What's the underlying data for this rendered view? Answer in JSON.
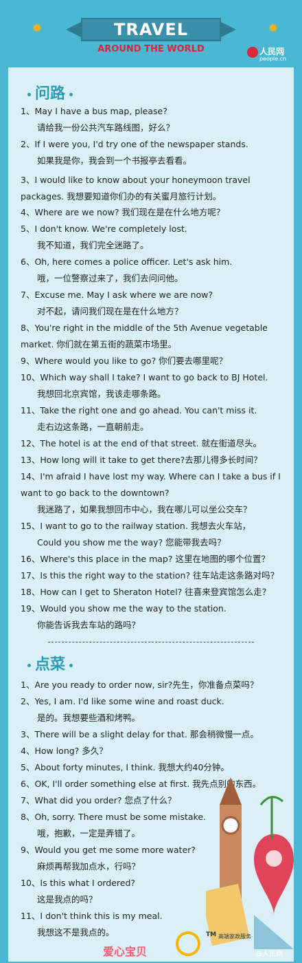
{
  "header": {
    "title": "TRAVEL",
    "subtitle": "AROUND THE WORLD",
    "logo_text": "人民网",
    "logo_sub": "people.cn"
  },
  "sections": [
    {
      "heading": "问路",
      "lines": [
        {
          "t": "1、May I have a bus map, please?",
          "k": "en"
        },
        {
          "t": "请给我一份公共汽车路线图，好么？",
          "k": "cn"
        },
        {
          "t": "2、If I were you, I'd try one of the newspaper stands.",
          "k": "en"
        },
        {
          "t": "如果我是你，我会到一个书报亭去看看。",
          "k": "cn"
        },
        {
          "t": "3、I would like to know about your honeymoon travel",
          "k": "en"
        },
        {
          "t": "packages. 我想要知道你们办的有关蜜月旅行计划。",
          "k": "wrap"
        },
        {
          "t": "4、Where are we now? 我们现在是在什么地方呢？",
          "k": "en"
        },
        {
          "t": "5、I don't know. We're completely lost.",
          "k": "en"
        },
        {
          "t": "我不知道，我们完全迷路了。",
          "k": "cn"
        },
        {
          "t": "6、Oh, here comes a police officer. Let's ask him.",
          "k": "en"
        },
        {
          "t": "哦，一位警察过来了，我们去问问他。",
          "k": "cn"
        },
        {
          "t": "7、Excuse me. May I ask where we are now?",
          "k": "en"
        },
        {
          "t": "对不起，请问我们现在是在什么地方？",
          "k": "cn"
        },
        {
          "t": "8、You're right in the middle of the 5th Avenue vegetable",
          "k": "en"
        },
        {
          "t": "market. 你们就在第五街的蔬菜市场里。",
          "k": "wrap"
        },
        {
          "t": "9、Where would you like to go? 你们要去哪里呢？",
          "k": "en"
        },
        {
          "t": "10、Which way shall I take? I want to go back to BJ Hotel.",
          "k": "en"
        },
        {
          "t": "我想回北京宾馆，我该走哪条路。",
          "k": "cn"
        },
        {
          "t": "11、Take the right one and go ahead. You can't miss it.",
          "k": "en"
        },
        {
          "t": "走右边这条路，一直朝前走。",
          "k": "cn"
        },
        {
          "t": "12、The hotel is at the end of that street. 就在街道尽头。",
          "k": "en"
        },
        {
          "t": "13、How long will it take to get there?去那儿得多长时间？",
          "k": "en"
        },
        {
          "t": "14、I'm afraid I have lost my way. Where can I take a bus if I",
          "k": "en"
        },
        {
          "t": "want to go back to the downtown?",
          "k": "wrap"
        },
        {
          "t": "我迷路了，如果我想回市中心，我在哪儿可以坐公交车？",
          "k": "cn"
        },
        {
          "t": "15、I want to go to the railway station. 我想去火车站，",
          "k": "en"
        },
        {
          "t": "Could you show me the way? 您能带我去吗？",
          "k": "cn"
        },
        {
          "t": "16、Where's this place in the map? 这里在地图的哪个位置？",
          "k": "en"
        },
        {
          "t": "17、Is this the right way to the station? 往车站走这条路对吗？",
          "k": "en"
        },
        {
          "t": "18、How can I get to Sheraton Hotel? 往喜来登宾馆怎么走？",
          "k": "en"
        },
        {
          "t": "19、Would you show me the way to the station.",
          "k": "en"
        },
        {
          "t": "你能告诉我去车站的路吗？",
          "k": "cn"
        }
      ]
    },
    {
      "heading": "点菜",
      "lines": [
        {
          "t": "1、Are you ready to order now, sir?先生，你准备点菜吗？",
          "k": "en"
        },
        {
          "t": "2、Yes, I am. I'd like some wine and roast duck.",
          "k": "en"
        },
        {
          "t": "是的。我想要些酒和烤鸭。",
          "k": "cn"
        },
        {
          "t": "3、There will be a slight delay for that. 那会稍微慢一点。",
          "k": "en"
        },
        {
          "t": "4、How long? 多久？",
          "k": "en"
        },
        {
          "t": "5、About forty minutes, I think. 我想大约40分钟。",
          "k": "en"
        },
        {
          "t": "6、OK, I'll order something else at first. 我先点别的东西。",
          "k": "en"
        },
        {
          "t": "7、What did you order? 您点了什么？",
          "k": "en"
        },
        {
          "t": "8、Oh, sorry. There must be some mistake.",
          "k": "en"
        },
        {
          "t": "哦，抱歉，一定是弄错了。",
          "k": "cn"
        },
        {
          "t": "9、Would you get me some more water?",
          "k": "en"
        },
        {
          "t": "麻烦再帮我加点水，行吗？",
          "k": "cn"
        },
        {
          "t": "10、Is this what I ordered?",
          "k": "en"
        },
        {
          "t": "这是我点的吗？",
          "k": "cn"
        },
        {
          "t": "11、I don't think this is my meal.",
          "k": "en"
        },
        {
          "t": "我想这不是我点的。",
          "k": "cn"
        }
      ]
    }
  ],
  "divider_text": "-------------------------------------------------------------------",
  "footer": {
    "brand_left": "爱心宝贝",
    "brand_right": "@人民网",
    "tm": "TM",
    "service": "高端家政服务"
  },
  "colors": {
    "background": "#4ab8d3",
    "panel": "#d9f1f6",
    "banner": "#3b8fa8",
    "accent_red": "#d8253a",
    "heading": "#2e9bb6"
  }
}
